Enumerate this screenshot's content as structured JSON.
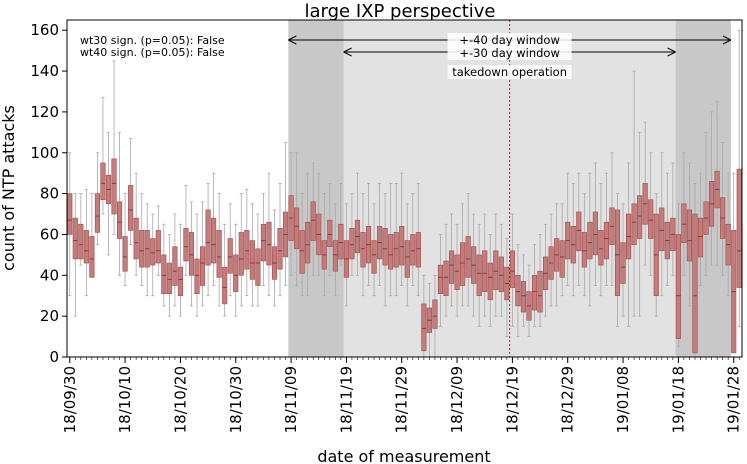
{
  "chart_data": {
    "type": "box",
    "title": "large IXP perspective",
    "xlabel": "date of measurement",
    "ylabel": "count of NTP attacks",
    "ylim": [
      0,
      165
    ],
    "yticks": [
      0,
      20,
      40,
      60,
      80,
      100,
      120,
      140,
      160
    ],
    "xticks": [
      "18/09/30",
      "18/10/10",
      "18/10/20",
      "18/10/30",
      "18/11/09",
      "18/11/19",
      "18/11/29",
      "18/12/09",
      "18/12/19",
      "18/12/29",
      "19/01/08",
      "19/01/18",
      "19/01/28"
    ],
    "first_day": "18/09/30",
    "n_days": 122,
    "stats_text": [
      "wt30 sign. (p=0.05): False",
      "wt40 sign. (p=0.05): False"
    ],
    "annotations": {
      "window40_label": "+-40 day window",
      "window30_label": "+-30 day window",
      "takedown_label": "takedown operation",
      "window40_days": [
        40,
        120
      ],
      "window30_days": [
        50,
        110
      ],
      "takedown_day": 80
    },
    "colors": {
      "box_fill": "#c47b7b",
      "box_edge": "#9a4f4f",
      "median": "#8a3c3c",
      "whisker": "#a8a8a8",
      "band_40": "#c8c8c8",
      "band_30": "#e2e2e2",
      "takedown_line": "#ff0000"
    },
    "boxes": [
      [
        30,
        60,
        67,
        80,
        100
      ],
      [
        20,
        48,
        57,
        68,
        80
      ],
      [
        45,
        48,
        55,
        65,
        80
      ],
      [
        30,
        46,
        52,
        62,
        82
      ],
      [
        40,
        39,
        48,
        59,
        80
      ],
      [
        55,
        61,
        69,
        80,
        100
      ],
      [
        70,
        77,
        85,
        95,
        127
      ],
      [
        50,
        75,
        82,
        89,
        110
      ],
      [
        60,
        70,
        85,
        97,
        145
      ],
      [
        40,
        58,
        66,
        76,
        110
      ],
      [
        35,
        42,
        49,
        59,
        80
      ],
      [
        55,
        62,
        72,
        84,
        107
      ],
      [
        40,
        48,
        56,
        68,
        90
      ],
      [
        35,
        44,
        52,
        62,
        80
      ],
      [
        30,
        44,
        53,
        62,
        75
      ],
      [
        30,
        45,
        51,
        58,
        70
      ],
      [
        40,
        46,
        52,
        62,
        74
      ],
      [
        25,
        31,
        40,
        50,
        65
      ],
      [
        20,
        31,
        38,
        46,
        60
      ],
      [
        25,
        35,
        42,
        54,
        70
      ],
      [
        20,
        30,
        38,
        44,
        65
      ],
      [
        40,
        47,
        54,
        63,
        84
      ],
      [
        25,
        40,
        50,
        61,
        76
      ],
      [
        20,
        31,
        40,
        48,
        70
      ],
      [
        25,
        35,
        46,
        54,
        76
      ],
      [
        30,
        45,
        56,
        72,
        85
      ],
      [
        35,
        46,
        55,
        68,
        90
      ],
      [
        25,
        39,
        49,
        62,
        80
      ],
      [
        20,
        26,
        34,
        44,
        65
      ],
      [
        30,
        41,
        49,
        58,
        75
      ],
      [
        20,
        32,
        40,
        50,
        65
      ],
      [
        25,
        40,
        48,
        61,
        80
      ],
      [
        30,
        43,
        52,
        62,
        82
      ],
      [
        25,
        38,
        46,
        57,
        75
      ],
      [
        25,
        35,
        46,
        53,
        70
      ],
      [
        35,
        47,
        57,
        65,
        80
      ],
      [
        30,
        45,
        55,
        66,
        90
      ],
      [
        25,
        38,
        46,
        54,
        72
      ],
      [
        30,
        43,
        52,
        63,
        85
      ],
      [
        35,
        49,
        60,
        71,
        105
      ],
      [
        40,
        57,
        68,
        79,
        100
      ],
      [
        35,
        53,
        64,
        73,
        100
      ],
      [
        30,
        41,
        52,
        62,
        80
      ],
      [
        30,
        46,
        55,
        66,
        90
      ],
      [
        40,
        57,
        67,
        76,
        95
      ],
      [
        40,
        50,
        60,
        70,
        90
      ],
      [
        30,
        43,
        50,
        57,
        80
      ],
      [
        40,
        54,
        60,
        67,
        85
      ],
      [
        30,
        42,
        50,
        57,
        75
      ],
      [
        45,
        48,
        56,
        65,
        85
      ],
      [
        25,
        39,
        48,
        57,
        75
      ],
      [
        40,
        48,
        55,
        63,
        80
      ],
      [
        40,
        51,
        59,
        67,
        90
      ],
      [
        30,
        44,
        53,
        61,
        80
      ],
      [
        35,
        46,
        55,
        64,
        85
      ],
      [
        30,
        41,
        50,
        57,
        75
      ],
      [
        35,
        48,
        56,
        64,
        85
      ],
      [
        25,
        45,
        53,
        63,
        80
      ],
      [
        30,
        43,
        50,
        60,
        85
      ],
      [
        30,
        44,
        53,
        61,
        85
      ],
      [
        35,
        45,
        54,
        64,
        90
      ],
      [
        25,
        39,
        49,
        57,
        75
      ],
      [
        35,
        45,
        52,
        60,
        80
      ],
      [
        30,
        44,
        53,
        61,
        85
      ],
      [
        0,
        3,
        14,
        26,
        40
      ],
      [
        0,
        12,
        18,
        24,
        36
      ],
      [
        0,
        14,
        20,
        28,
        40
      ],
      [
        15,
        31,
        39,
        45,
        60
      ],
      [
        20,
        30,
        39,
        47,
        65
      ],
      [
        25,
        36,
        45,
        52,
        70
      ],
      [
        20,
        33,
        42,
        50,
        65
      ],
      [
        25,
        35,
        46,
        56,
        75
      ],
      [
        25,
        39,
        48,
        59,
        80
      ],
      [
        20,
        36,
        45,
        54,
        70
      ],
      [
        15,
        30,
        41,
        50,
        65
      ],
      [
        20,
        32,
        41,
        52,
        70
      ],
      [
        15,
        28,
        39,
        46,
        60
      ],
      [
        20,
        33,
        42,
        52,
        70
      ],
      [
        20,
        32,
        40,
        49,
        65
      ],
      [
        10,
        28,
        36,
        44,
        58
      ],
      [
        15,
        34,
        42,
        52,
        70
      ],
      [
        10,
        25,
        32,
        40,
        55
      ],
      [
        15,
        22,
        30,
        37,
        50
      ],
      [
        10,
        18,
        25,
        32,
        45
      ],
      [
        15,
        23,
        32,
        40,
        55
      ],
      [
        15,
        22,
        30,
        42,
        60
      ],
      [
        20,
        33,
        41,
        49,
        65
      ],
      [
        25,
        38,
        46,
        54,
        70
      ],
      [
        25,
        42,
        50,
        58,
        75
      ],
      [
        30,
        39,
        49,
        57,
        75
      ],
      [
        35,
        48,
        57,
        66,
        90
      ],
      [
        30,
        46,
        55,
        64,
        85
      ],
      [
        35,
        52,
        62,
        71,
        90
      ],
      [
        30,
        44,
        52,
        61,
        80
      ],
      [
        25,
        48,
        56,
        66,
        90
      ],
      [
        35,
        50,
        60,
        71,
        95
      ],
      [
        30,
        45,
        53,
        62,
        85
      ],
      [
        35,
        48,
        58,
        66,
        90
      ],
      [
        35,
        55,
        64,
        73,
        100
      ],
      [
        15,
        30,
        50,
        72,
        80
      ],
      [
        20,
        36,
        44,
        56,
        75
      ],
      [
        15,
        48,
        59,
        70,
        95
      ],
      [
        20,
        55,
        66,
        75,
        140
      ],
      [
        20,
        58,
        69,
        79,
        110
      ],
      [
        45,
        65,
        75,
        85,
        115
      ],
      [
        40,
        58,
        67,
        77,
        100
      ],
      [
        20,
        30,
        50,
        70,
        80
      ],
      [
        30,
        52,
        62,
        73,
        100
      ],
      [
        35,
        48,
        57,
        66,
        90
      ],
      [
        40,
        52,
        60,
        68,
        95
      ],
      [
        5,
        9,
        30,
        60,
        75
      ],
      [
        40,
        56,
        65,
        75,
        100
      ],
      [
        25,
        47,
        57,
        72,
        95
      ],
      [
        0,
        2,
        30,
        70,
        85
      ],
      [
        35,
        49,
        59,
        68,
        90
      ],
      [
        40,
        60,
        68,
        76,
        110
      ],
      [
        45,
        64,
        75,
        86,
        120
      ],
      [
        45,
        73,
        82,
        91,
        125
      ],
      [
        40,
        58,
        68,
        78,
        105
      ],
      [
        30,
        45,
        55,
        65,
        90
      ],
      [
        10,
        2,
        32,
        62,
        90
      ],
      [
        15,
        34,
        52,
        92,
        160
      ]
    ]
  }
}
